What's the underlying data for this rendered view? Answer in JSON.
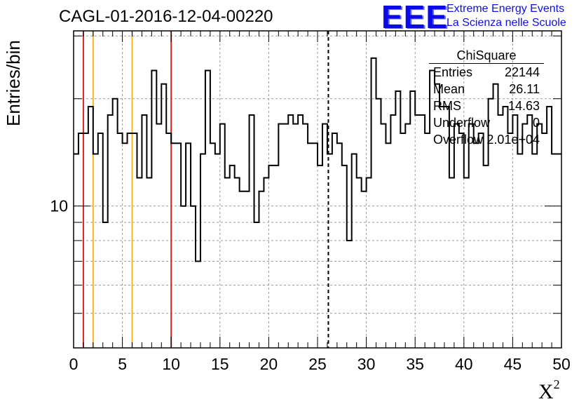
{
  "header": {
    "title": "CAGL-01-2016-12-04-00220",
    "logo_mark": "EEE",
    "logo_line1": "Extreme Energy Events",
    "logo_line2": "La Scienza nelle Scuole"
  },
  "stats_box": {
    "title": "ChiSquare",
    "rows": [
      {
        "label": "Entries",
        "value": "22144"
      },
      {
        "label": "Mean",
        "value": "26.11"
      },
      {
        "label": "RMS",
        "value": "14.63"
      },
      {
        "label": "Underflow",
        "value": "0"
      },
      {
        "label": "Overflow",
        "value": "2.01e+04"
      }
    ]
  },
  "colors": {
    "red_lines": "#dd2222",
    "yellow_lines": "#eebb22",
    "histogram": "#000000",
    "mean_line": "#000000",
    "logo": "#1010e0"
  },
  "chart_data": {
    "type": "bar",
    "subtype": "step-histogram",
    "title": "CAGL-01-2016-12-04-00220",
    "xlabel": "X",
    "xlabel_sup": "2",
    "ylabel": "Entries/bin",
    "xlim": [
      0,
      50
    ],
    "ylim": [
      4,
      31
    ],
    "y_scale": "log",
    "grid": true,
    "bin_width": 0.5,
    "x_ticks": [
      "0",
      "5",
      "10",
      "15",
      "20",
      "25",
      "30",
      "35",
      "40",
      "45",
      "50"
    ],
    "y_ticks": [
      "10"
    ],
    "values": [
      14,
      16,
      16,
      19,
      14,
      16,
      9,
      18,
      20,
      16,
      15,
      16,
      16,
      12,
      18,
      12,
      24,
      17,
      22,
      16,
      15,
      15,
      10,
      15,
      10,
      7,
      14,
      24,
      15,
      14,
      17,
      12,
      13,
      12,
      11,
      11,
      18,
      9,
      11,
      12,
      13,
      13,
      17,
      17,
      18,
      17,
      18,
      17,
      15,
      15,
      13,
      17,
      14,
      16,
      15,
      13,
      8,
      14,
      12,
      11,
      12,
      26,
      20,
      17,
      15,
      18,
      21,
      16,
      17,
      21,
      18,
      18,
      16,
      24,
      22,
      19,
      19,
      12,
      17,
      16,
      12,
      17,
      15,
      16,
      13,
      20,
      22,
      18,
      19,
      16,
      18,
      14,
      17,
      18,
      14,
      17,
      16,
      19,
      14,
      14
    ]
  },
  "vertical_lines": [
    {
      "x": 1,
      "color": "red"
    },
    {
      "x": 2,
      "color": "yellow"
    },
    {
      "x": 6,
      "color": "yellow"
    },
    {
      "x": 10,
      "color": "red"
    },
    {
      "x": 26.11,
      "color": "black-dashed"
    }
  ]
}
